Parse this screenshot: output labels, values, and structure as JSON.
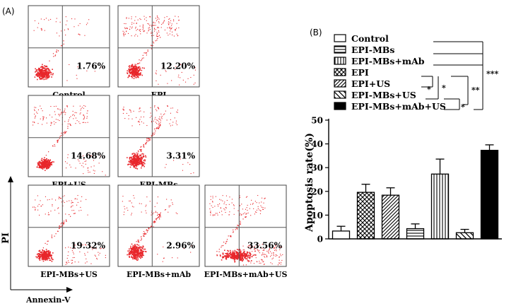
{
  "panelA": {
    "label": "(A)",
    "y_axis_label": "PI",
    "x_axis_label": "Annexin-V",
    "plots": [
      {
        "name": "Control",
        "percent": "1.76%"
      },
      {
        "name": "EPI",
        "percent": "12.20%"
      },
      {
        "name": "EPI+US",
        "percent": "14.68%"
      },
      {
        "name": "EPI-MBs",
        "percent": "3.31%"
      },
      {
        "name": "EPI-MBs+US",
        "percent": "19.32%"
      },
      {
        "name": "EPI-MBs+mAb",
        "percent": "2.96%"
      },
      {
        "name": "EPI-MBs+mAb+US",
        "percent": "33.56%"
      }
    ],
    "dot_color": "#e8262b"
  },
  "panelB": {
    "label": "(B)",
    "sig_labels": [
      "*",
      "*",
      "**",
      "*",
      "***"
    ]
  },
  "chart_data": {
    "type": "bar",
    "categories": [
      "Control",
      "EPI-MBs",
      "EPI-MBs+mAb",
      "EPI",
      "EPI+US",
      "EPI-MBs+US",
      "EPI-MBs+mAb+US"
    ],
    "bar_order": [
      "EPI-MBs",
      "EPI",
      "EPI+US",
      "EPI-MBs+mAb",
      "EPI-MBs+US",
      "EPI-MBs+mAb",
      "EPI-MBs+mAb+US"
    ],
    "values": [
      3.3,
      19.6,
      18.4,
      4.3,
      27.3,
      2.6,
      37.3
    ],
    "errors": [
      2.0,
      3.4,
      3.1,
      2.0,
      6.3,
      1.4,
      2.3
    ],
    "patterns": [
      "none",
      "crosshatch",
      "diagonal",
      "horizontal",
      "vertical",
      "reverse-diagonal",
      "solid"
    ],
    "ylabel": "Apoptosis rate(%)",
    "ylim": [
      0,
      50
    ],
    "yticks": [
      0,
      10,
      20,
      30,
      40,
      50
    ],
    "legend_position": "top"
  }
}
